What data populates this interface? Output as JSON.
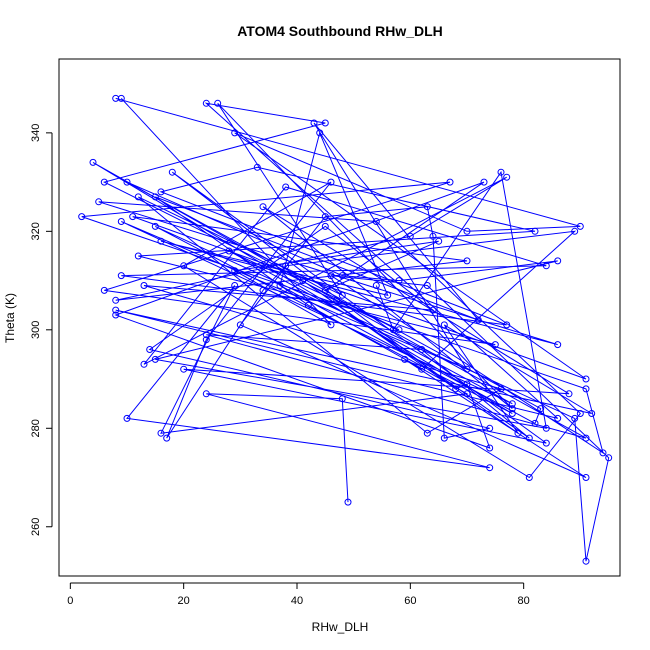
{
  "chart_data": {
    "type": "line",
    "title": "ATOM4 Southbound RHw_DLH",
    "xlabel": "RHw_DLH",
    "ylabel": "Theta (K)",
    "xlim": [
      -2,
      97
    ],
    "ylim": [
      250,
      355
    ],
    "x_ticks": [
      0,
      20,
      40,
      60,
      80
    ],
    "y_ticks": [
      260,
      280,
      300,
      320,
      340
    ],
    "grid": false,
    "legend": "none",
    "marker": "open-circle",
    "line_color": "#0000ff",
    "series": [
      {
        "x": [
          8,
          90,
          70,
          29,
          91,
          11,
          70,
          8,
          60,
          77,
          13,
          38,
          84,
          9,
          77,
          16,
          33,
          82,
          12,
          75,
          6,
          67,
          2,
          91,
          94,
          46,
          63,
          95,
          91,
          89,
          15,
          78,
          4,
          47,
          91,
          24,
          62,
          81,
          41,
          79,
          66,
          92,
          8,
          86,
          24,
          45,
          6,
          58,
          28,
          78,
          9,
          70,
          43,
          72,
          15,
          42,
          70,
          16,
          29,
          10,
          74,
          24,
          48,
          49
        ],
        "y": [
          347,
          321,
          320,
          340,
          290,
          323,
          314,
          306,
          319,
          331,
          293,
          329,
          313,
          311,
          301,
          328,
          333,
          320,
          315,
          297,
          308,
          330,
          323,
          288,
          275,
          311,
          309,
          274,
          253,
          282,
          321,
          283,
          334,
          306,
          278,
          299,
          296,
          278,
          310,
          279,
          301,
          283,
          304,
          282,
          346,
          342,
          330,
          300,
          316,
          285,
          322,
          292,
          342,
          302,
          327,
          305,
          287,
          279,
          309,
          282,
          272,
          287,
          286,
          265
        ]
      },
      {
        "x": [
          9,
          46,
          29,
          65,
          45,
          73,
          8,
          74,
          70,
          68,
          18,
          84,
          20,
          88,
          34,
          78,
          26,
          48,
          12,
          63,
          76,
          13,
          64,
          45,
          14,
          74,
          66,
          64,
          63,
          45,
          30,
          91,
          59,
          62,
          89,
          38,
          34,
          17,
          24,
          46,
          20,
          81,
          90,
          54,
          5,
          86,
          16,
          56,
          44,
          37,
          82,
          83,
          10,
          48,
          58,
          86,
          15,
          84,
          76,
          57,
          54
        ],
        "y": [
          347,
          301,
          312,
          318,
          308,
          330,
          303,
          276,
          289,
          288,
          332,
          277,
          292,
          287,
          325,
          284,
          346,
          307,
          327,
          279,
          288,
          309,
          304,
          321,
          296,
          280,
          278,
          319,
          325,
          323,
          301,
          270,
          294,
          292,
          320,
          313,
          308,
          278,
          298,
          330,
          313,
          270,
          283,
          322,
          326,
          297,
          318,
          307,
          340,
          309,
          281,
          284,
          330,
          311,
          310,
          314,
          294,
          280,
          332,
          300,
          309
        ]
      }
    ]
  }
}
